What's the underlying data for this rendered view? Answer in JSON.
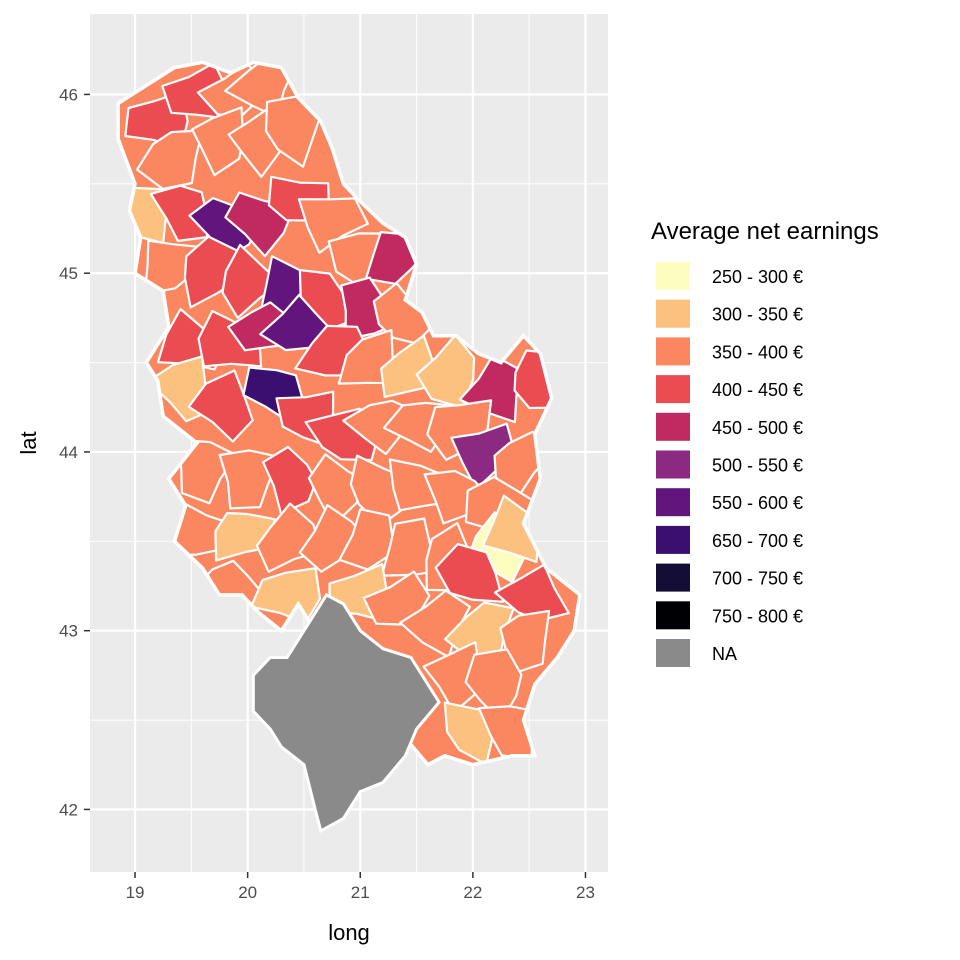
{
  "chart_data": {
    "type": "choropleth",
    "xlabel": "long",
    "ylabel": "lat",
    "xlim": [
      18.6,
      23.2
    ],
    "ylim": [
      41.65,
      46.45
    ],
    "x_ticks": [
      19,
      20,
      21,
      22,
      23
    ],
    "y_ticks": [
      42,
      43,
      44,
      45,
      46
    ],
    "grid": true,
    "legend_position": "right",
    "legend": {
      "title": "Average net earnings",
      "items": [
        {
          "label": "250 - 300 €",
          "color": "#FCFDBF"
        },
        {
          "label": "300 - 350 €",
          "color": "#FDC17F"
        },
        {
          "label": "350 - 400 €",
          "color": "#FB8760"
        },
        {
          "label": "400 - 450 €",
          "color": "#EB4C51"
        },
        {
          "label": "450 - 500 €",
          "color": "#C12A61"
        },
        {
          "label": "500 - 550 €",
          "color": "#8C2981"
        },
        {
          "label": "550 - 600 €",
          "color": "#63157E"
        },
        {
          "label": "650 - 700 €",
          "color": "#3B0F70"
        },
        {
          "label": "700 - 750 €",
          "color": "#140E36"
        },
        {
          "label": "750 - 800 €",
          "color": "#000004"
        },
        {
          "label": "NA",
          "color": "#8A8A8A"
        }
      ]
    },
    "outline_lonlat": [
      [
        18.85,
        45.95
      ],
      [
        19.1,
        46.05
      ],
      [
        19.35,
        46.15
      ],
      [
        19.6,
        46.18
      ],
      [
        19.85,
        46.12
      ],
      [
        20.05,
        46.18
      ],
      [
        20.3,
        46.15
      ],
      [
        20.45,
        45.98
      ],
      [
        20.65,
        45.85
      ],
      [
        20.75,
        45.7
      ],
      [
        20.85,
        45.5
      ],
      [
        21.0,
        45.4
      ],
      [
        21.2,
        45.28
      ],
      [
        21.4,
        45.2
      ],
      [
        21.5,
        45.05
      ],
      [
        21.4,
        44.85
      ],
      [
        21.55,
        44.78
      ],
      [
        21.65,
        44.65
      ],
      [
        21.85,
        44.65
      ],
      [
        22.05,
        44.55
      ],
      [
        22.25,
        44.5
      ],
      [
        22.45,
        44.65
      ],
      [
        22.6,
        44.55
      ],
      [
        22.7,
        44.3
      ],
      [
        22.55,
        44.1
      ],
      [
        22.6,
        43.85
      ],
      [
        22.45,
        43.6
      ],
      [
        22.65,
        43.35
      ],
      [
        22.95,
        43.2
      ],
      [
        22.9,
        43.0
      ],
      [
        22.75,
        42.85
      ],
      [
        22.55,
        42.7
      ],
      [
        22.45,
        42.5
      ],
      [
        22.55,
        42.3
      ],
      [
        22.35,
        42.3
      ],
      [
        22.0,
        42.25
      ],
      [
        21.75,
        42.3
      ],
      [
        21.6,
        42.25
      ],
      [
        21.4,
        42.4
      ],
      [
        21.2,
        42.5
      ],
      [
        21.0,
        42.6
      ],
      [
        20.95,
        42.75
      ],
      [
        20.8,
        42.85
      ],
      [
        20.6,
        43.0
      ],
      [
        20.45,
        43.15
      ],
      [
        20.3,
        43.0
      ],
      [
        20.1,
        43.1
      ],
      [
        19.95,
        43.2
      ],
      [
        19.75,
        43.2
      ],
      [
        19.6,
        43.35
      ],
      [
        19.35,
        43.5
      ],
      [
        19.45,
        43.7
      ],
      [
        19.3,
        43.85
      ],
      [
        19.55,
        44.05
      ],
      [
        19.25,
        44.2
      ],
      [
        19.2,
        44.4
      ],
      [
        19.1,
        44.5
      ],
      [
        19.3,
        44.7
      ],
      [
        19.25,
        44.9
      ],
      [
        19.0,
        45.0
      ],
      [
        19.05,
        45.2
      ],
      [
        18.95,
        45.35
      ],
      [
        19.0,
        45.5
      ],
      [
        18.85,
        45.75
      ],
      [
        18.85,
        45.95
      ]
    ],
    "kosovo_lonlat": [
      [
        20.05,
        42.75
      ],
      [
        20.2,
        42.85
      ],
      [
        20.35,
        42.85
      ],
      [
        20.55,
        43.05
      ],
      [
        20.7,
        43.2
      ],
      [
        20.85,
        43.15
      ],
      [
        21.0,
        43.0
      ],
      [
        21.2,
        42.9
      ],
      [
        21.45,
        42.85
      ],
      [
        21.7,
        42.6
      ],
      [
        21.5,
        42.45
      ],
      [
        21.4,
        42.3
      ],
      [
        21.2,
        42.15
      ],
      [
        21.0,
        42.1
      ],
      [
        20.85,
        41.95
      ],
      [
        20.65,
        41.88
      ],
      [
        20.6,
        42.0
      ],
      [
        20.5,
        42.25
      ],
      [
        20.3,
        42.35
      ],
      [
        20.2,
        42.45
      ],
      [
        20.05,
        42.55
      ],
      [
        20.05,
        42.75
      ]
    ],
    "regions": [
      {
        "lon": 19.2,
        "lat": 45.85,
        "bin": 3
      },
      {
        "lon": 19.55,
        "lat": 46.0,
        "bin": 3
      },
      {
        "lon": 19.9,
        "lat": 46.0,
        "bin": 2
      },
      {
        "lon": 20.15,
        "lat": 46.05,
        "bin": 2
      },
      {
        "lon": 19.35,
        "lat": 45.65,
        "bin": 2
      },
      {
        "lon": 19.75,
        "lat": 45.75,
        "bin": 2
      },
      {
        "lon": 20.1,
        "lat": 45.75,
        "bin": 2
      },
      {
        "lon": 20.4,
        "lat": 45.8,
        "bin": 2
      },
      {
        "lon": 19.1,
        "lat": 45.35,
        "bin": 1
      },
      {
        "lon": 19.45,
        "lat": 45.35,
        "bin": 3
      },
      {
        "lon": 19.8,
        "lat": 45.27,
        "bin": 6
      },
      {
        "lon": 20.1,
        "lat": 45.3,
        "bin": 4
      },
      {
        "lon": 20.45,
        "lat": 45.4,
        "bin": 3
      },
      {
        "lon": 20.75,
        "lat": 45.3,
        "bin": 2
      },
      {
        "lon": 21.05,
        "lat": 45.1,
        "bin": 2
      },
      {
        "lon": 21.3,
        "lat": 45.1,
        "bin": 4
      },
      {
        "lon": 19.3,
        "lat": 45.05,
        "bin": 2
      },
      {
        "lon": 19.65,
        "lat": 45.0,
        "bin": 3
      },
      {
        "lon": 20.0,
        "lat": 44.95,
        "bin": 3
      },
      {
        "lon": 20.35,
        "lat": 44.9,
        "bin": 6
      },
      {
        "lon": 20.65,
        "lat": 44.85,
        "bin": 3
      },
      {
        "lon": 21.05,
        "lat": 44.8,
        "bin": 4
      },
      {
        "lon": 21.35,
        "lat": 44.75,
        "bin": 2
      },
      {
        "lon": 19.5,
        "lat": 44.6,
        "bin": 3
      },
      {
        "lon": 19.85,
        "lat": 44.6,
        "bin": 3
      },
      {
        "lon": 20.15,
        "lat": 44.7,
        "bin": 4
      },
      {
        "lon": 20.45,
        "lat": 44.7,
        "bin": 6
      },
      {
        "lon": 20.75,
        "lat": 44.55,
        "bin": 3
      },
      {
        "lon": 21.1,
        "lat": 44.5,
        "bin": 2
      },
      {
        "lon": 21.45,
        "lat": 44.45,
        "bin": 1
      },
      {
        "lon": 21.8,
        "lat": 44.45,
        "bin": 1
      },
      {
        "lon": 22.2,
        "lat": 44.35,
        "bin": 4
      },
      {
        "lon": 22.55,
        "lat": 44.4,
        "bin": 3
      },
      {
        "lon": 19.45,
        "lat": 44.35,
        "bin": 1
      },
      {
        "lon": 19.8,
        "lat": 44.25,
        "bin": 3
      },
      {
        "lon": 20.25,
        "lat": 44.35,
        "bin": 7
      },
      {
        "lon": 20.55,
        "lat": 44.2,
        "bin": 3
      },
      {
        "lon": 20.85,
        "lat": 44.1,
        "bin": 3
      },
      {
        "lon": 21.2,
        "lat": 44.15,
        "bin": 2
      },
      {
        "lon": 21.55,
        "lat": 44.15,
        "bin": 2
      },
      {
        "lon": 21.9,
        "lat": 44.15,
        "bin": 2
      },
      {
        "lon": 22.1,
        "lat": 44.0,
        "bin": 5
      },
      {
        "lon": 22.4,
        "lat": 43.95,
        "bin": 2
      },
      {
        "lon": 19.6,
        "lat": 43.9,
        "bin": 2
      },
      {
        "lon": 20.0,
        "lat": 43.85,
        "bin": 2
      },
      {
        "lon": 20.4,
        "lat": 43.85,
        "bin": 3
      },
      {
        "lon": 20.8,
        "lat": 43.8,
        "bin": 2
      },
      {
        "lon": 21.15,
        "lat": 43.8,
        "bin": 2
      },
      {
        "lon": 21.5,
        "lat": 43.8,
        "bin": 2
      },
      {
        "lon": 21.85,
        "lat": 43.75,
        "bin": 2
      },
      {
        "lon": 22.25,
        "lat": 43.7,
        "bin": 2
      },
      {
        "lon": 19.55,
        "lat": 43.55,
        "bin": 2
      },
      {
        "lon": 19.95,
        "lat": 43.55,
        "bin": 1
      },
      {
        "lon": 20.35,
        "lat": 43.5,
        "bin": 2
      },
      {
        "lon": 20.75,
        "lat": 43.5,
        "bin": 2
      },
      {
        "lon": 21.1,
        "lat": 43.5,
        "bin": 2
      },
      {
        "lon": 21.45,
        "lat": 43.45,
        "bin": 2
      },
      {
        "lon": 21.8,
        "lat": 43.4,
        "bin": 2
      },
      {
        "lon": 22.2,
        "lat": 43.45,
        "bin": 0
      },
      {
        "lon": 22.35,
        "lat": 43.55,
        "bin": 1
      },
      {
        "lon": 22.0,
        "lat": 43.3,
        "bin": 3
      },
      {
        "lon": 22.55,
        "lat": 43.2,
        "bin": 3
      },
      {
        "lon": 19.85,
        "lat": 43.25,
        "bin": 2
      },
      {
        "lon": 20.35,
        "lat": 43.2,
        "bin": 1
      },
      {
        "lon": 21.0,
        "lat": 43.2,
        "bin": 1
      },
      {
        "lon": 21.35,
        "lat": 43.15,
        "bin": 2
      },
      {
        "lon": 21.7,
        "lat": 43.05,
        "bin": 2
      },
      {
        "lon": 22.1,
        "lat": 43.0,
        "bin": 1
      },
      {
        "lon": 22.45,
        "lat": 42.95,
        "bin": 2
      },
      {
        "lon": 21.85,
        "lat": 42.75,
        "bin": 2
      },
      {
        "lon": 22.2,
        "lat": 42.7,
        "bin": 2
      },
      {
        "lon": 22.0,
        "lat": 42.45,
        "bin": 1
      },
      {
        "lon": 22.35,
        "lat": 42.45,
        "bin": 2
      }
    ]
  }
}
